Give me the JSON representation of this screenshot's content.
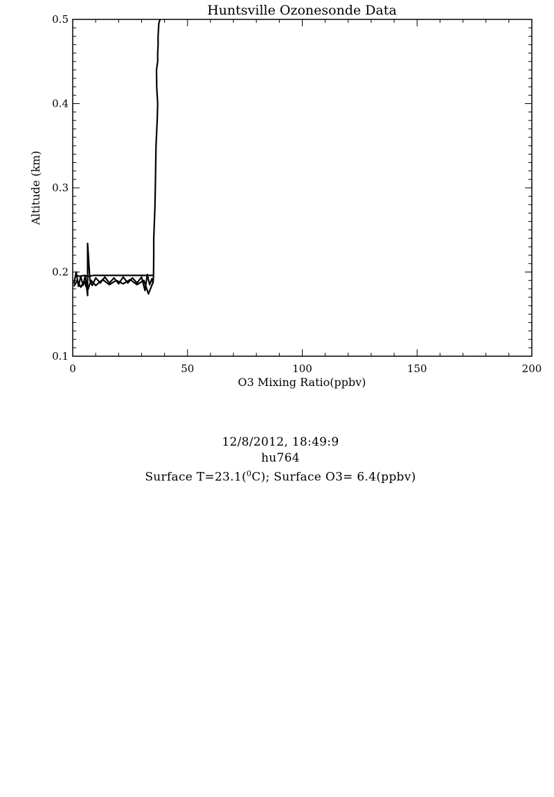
{
  "chart_data": {
    "type": "line",
    "title": "Huntsville Ozonesonde Data",
    "xlabel": "O3 Mixing Ratio(ppbv)",
    "ylabel": "Altitude (km)",
    "xlim": [
      0,
      200
    ],
    "ylim": [
      0.1,
      0.5
    ],
    "x_ticks": [
      0,
      50,
      100,
      150,
      200
    ],
    "y_ticks": [
      0.1,
      0.2,
      0.3,
      0.4,
      0.5
    ],
    "x_tick_labels": [
      "0",
      "50",
      "100",
      "150",
      "200"
    ],
    "y_tick_labels": [
      "0.1",
      "0.2",
      "0.3",
      "0.4",
      "0.5"
    ],
    "grid": false,
    "series": [
      {
        "color": "#000000",
        "x": [
          0.5,
          1.5,
          2.5,
          3.5,
          4.5,
          5.5,
          6.5,
          6.5,
          7.5,
          8.5,
          10,
          12,
          14,
          16,
          18,
          20,
          22,
          24,
          26,
          28,
          30,
          31.5,
          32.5,
          33.5,
          34.5,
          35,
          35.2,
          35.3,
          35.3,
          35.8,
          36.0,
          36.1,
          36.3,
          36.8,
          37.0,
          36.6,
          36.5,
          37.0,
          37.0,
          37.2,
          37.2,
          37.5,
          38.0
        ],
        "y": [
          0.186,
          0.2,
          0.183,
          0.195,
          0.184,
          0.196,
          0.172,
          0.234,
          0.19,
          0.184,
          0.193,
          0.187,
          0.194,
          0.187,
          0.193,
          0.186,
          0.194,
          0.187,
          0.193,
          0.187,
          0.194,
          0.178,
          0.197,
          0.185,
          0.192,
          0.187,
          0.195,
          0.22,
          0.24,
          0.276,
          0.3,
          0.32,
          0.35,
          0.38,
          0.4,
          0.42,
          0.44,
          0.45,
          0.46,
          0.47,
          0.48,
          0.495,
          0.5
        ]
      },
      {
        "color": "#000000",
        "x": [
          1,
          3,
          5,
          7,
          9,
          12,
          15,
          18,
          21,
          24,
          27,
          30,
          33,
          35
        ],
        "y": [
          0.196,
          0.195,
          0.196,
          0.195,
          0.196,
          0.196,
          0.196,
          0.196,
          0.196,
          0.196,
          0.196,
          0.196,
          0.196,
          0.196
        ]
      },
      {
        "color": "#000000",
        "x": [
          0.5,
          2,
          3.5,
          5,
          6.5,
          8,
          10,
          13,
          16,
          19,
          22,
          25,
          28,
          31,
          33,
          35
        ],
        "y": [
          0.183,
          0.19,
          0.182,
          0.189,
          0.178,
          0.19,
          0.184,
          0.191,
          0.185,
          0.19,
          0.186,
          0.191,
          0.185,
          0.19,
          0.174,
          0.188
        ]
      }
    ]
  },
  "info": {
    "datetime": "12/8/2012, 18:49:9",
    "station_id": "hu764",
    "surface_text_prefix": "Surface T=23.1(",
    "degree_sup": "0",
    "surface_text_suffix": "C); Surface O3= 6.4(ppbv)"
  }
}
